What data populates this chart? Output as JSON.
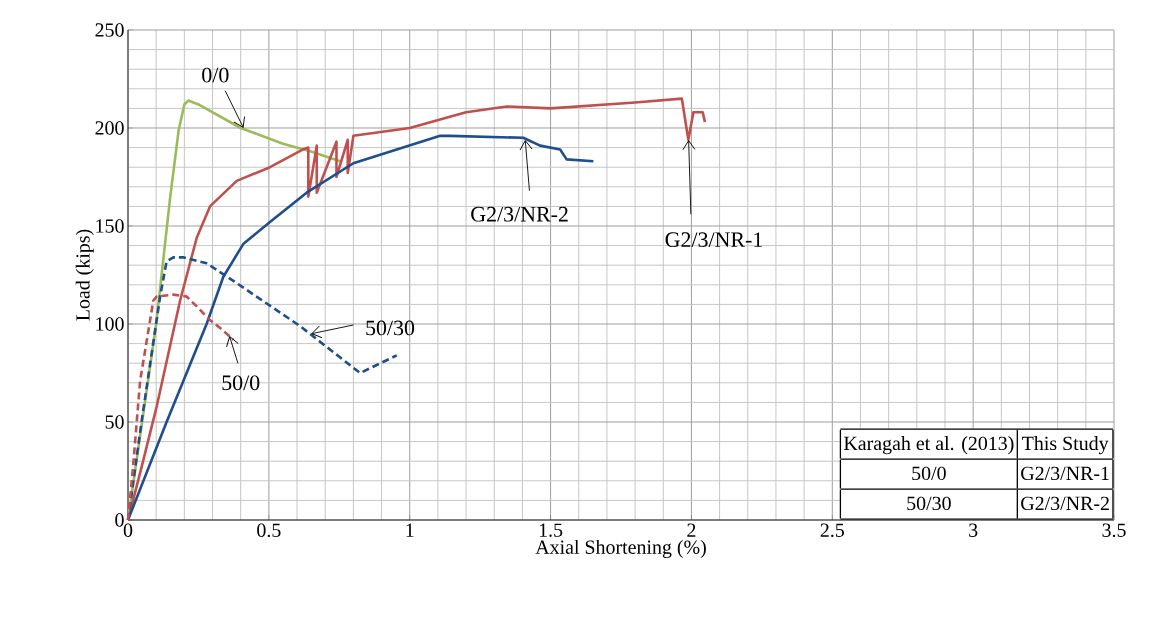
{
  "chart_data": {
    "type": "line",
    "xlabel": "Axial Shortening (%)",
    "ylabel": "Load (kips)",
    "xlim": [
      0,
      3.5
    ],
    "ylim": [
      0,
      250
    ],
    "xticks": [
      0,
      0.5,
      1,
      1.5,
      2,
      2.5,
      3,
      3.5
    ],
    "yticks": [
      0,
      50,
      100,
      150,
      200,
      250
    ],
    "grid": true,
    "marker": "none",
    "series": [
      {
        "color": "#9bbb59",
        "line_style": "solid",
        "x": [
          0,
          0.03,
          0.1,
          0.15,
          0.18,
          0.2,
          0.214,
          0.25,
          0.4,
          0.55,
          0.65,
          0.753
        ],
        "values": [
          0,
          30,
          100,
          165,
          199,
          212,
          214,
          212,
          200,
          192,
          188,
          183
        ]
      },
      {
        "color": "#c0504d",
        "line_style": "solid",
        "x": [
          0,
          0.05,
          0.102,
          0.185,
          0.244,
          0.291,
          0.386,
          0.504,
          0.62,
          0.64,
          0.64,
          0.67,
          0.67,
          0.74,
          0.74,
          0.78,
          0.78,
          0.8,
          1.0,
          1.2,
          1.344,
          1.5,
          1.8,
          1.966,
          1.989,
          2.007,
          2.04,
          2.048
        ],
        "values": [
          0,
          28,
          58,
          112,
          144,
          160,
          173,
          180,
          189,
          190,
          165,
          191,
          167,
          193,
          175,
          194,
          177,
          196,
          200,
          208,
          211,
          210,
          213,
          215,
          194,
          208,
          208,
          203
        ]
      },
      {
        "color": "#1f4e8c",
        "line_style": "solid",
        "x": [
          0,
          0.137,
          0.279,
          0.338,
          0.41,
          0.504,
          0.634,
          0.8,
          1.108,
          1.143,
          1.403,
          1.463,
          1.534,
          1.557,
          1.652
        ],
        "values": [
          0,
          50,
          100,
          124,
          141,
          152,
          167,
          182,
          196,
          196,
          195,
          191,
          189,
          184,
          183
        ]
      },
      {
        "color": "#1f4e8c",
        "line_style": "dashed",
        "x": [
          0,
          0.05,
          0.114,
          0.137,
          0.161,
          0.196,
          0.279,
          0.374,
          0.61,
          0.824,
          0.954
        ],
        "values": [
          0,
          52,
          114,
          132,
          134,
          134,
          131,
          122,
          99,
          75,
          84
        ]
      },
      {
        "color": "#c0504d",
        "line_style": "dashed",
        "x": [
          0,
          0.019,
          0.043,
          0.09,
          0.102,
          0.161,
          0.208,
          0.244,
          0.291,
          0.327,
          0.374
        ],
        "values": [
          0,
          29,
          71,
          112,
          114,
          115,
          114,
          109,
          102,
          98,
          92
        ]
      }
    ],
    "annotations": [
      {
        "text": "0/0",
        "x": 0.41,
        "y": 200
      },
      {
        "text": "50/30",
        "x": 0.65,
        "y": 95
      },
      {
        "text": "50/0",
        "x": 0.36,
        "y": 94
      },
      {
        "text": "G2/3/NR-2",
        "x": 1.41,
        "y": 194
      },
      {
        "text": "G2/3/NR-1",
        "x": 1.99,
        "y": 194
      },
      "Karagah et al. (2013)",
      "This Study",
      "50/0",
      "G2/3/NR-1",
      "50/30",
      "G2/3/NR-2"
    ]
  }
}
